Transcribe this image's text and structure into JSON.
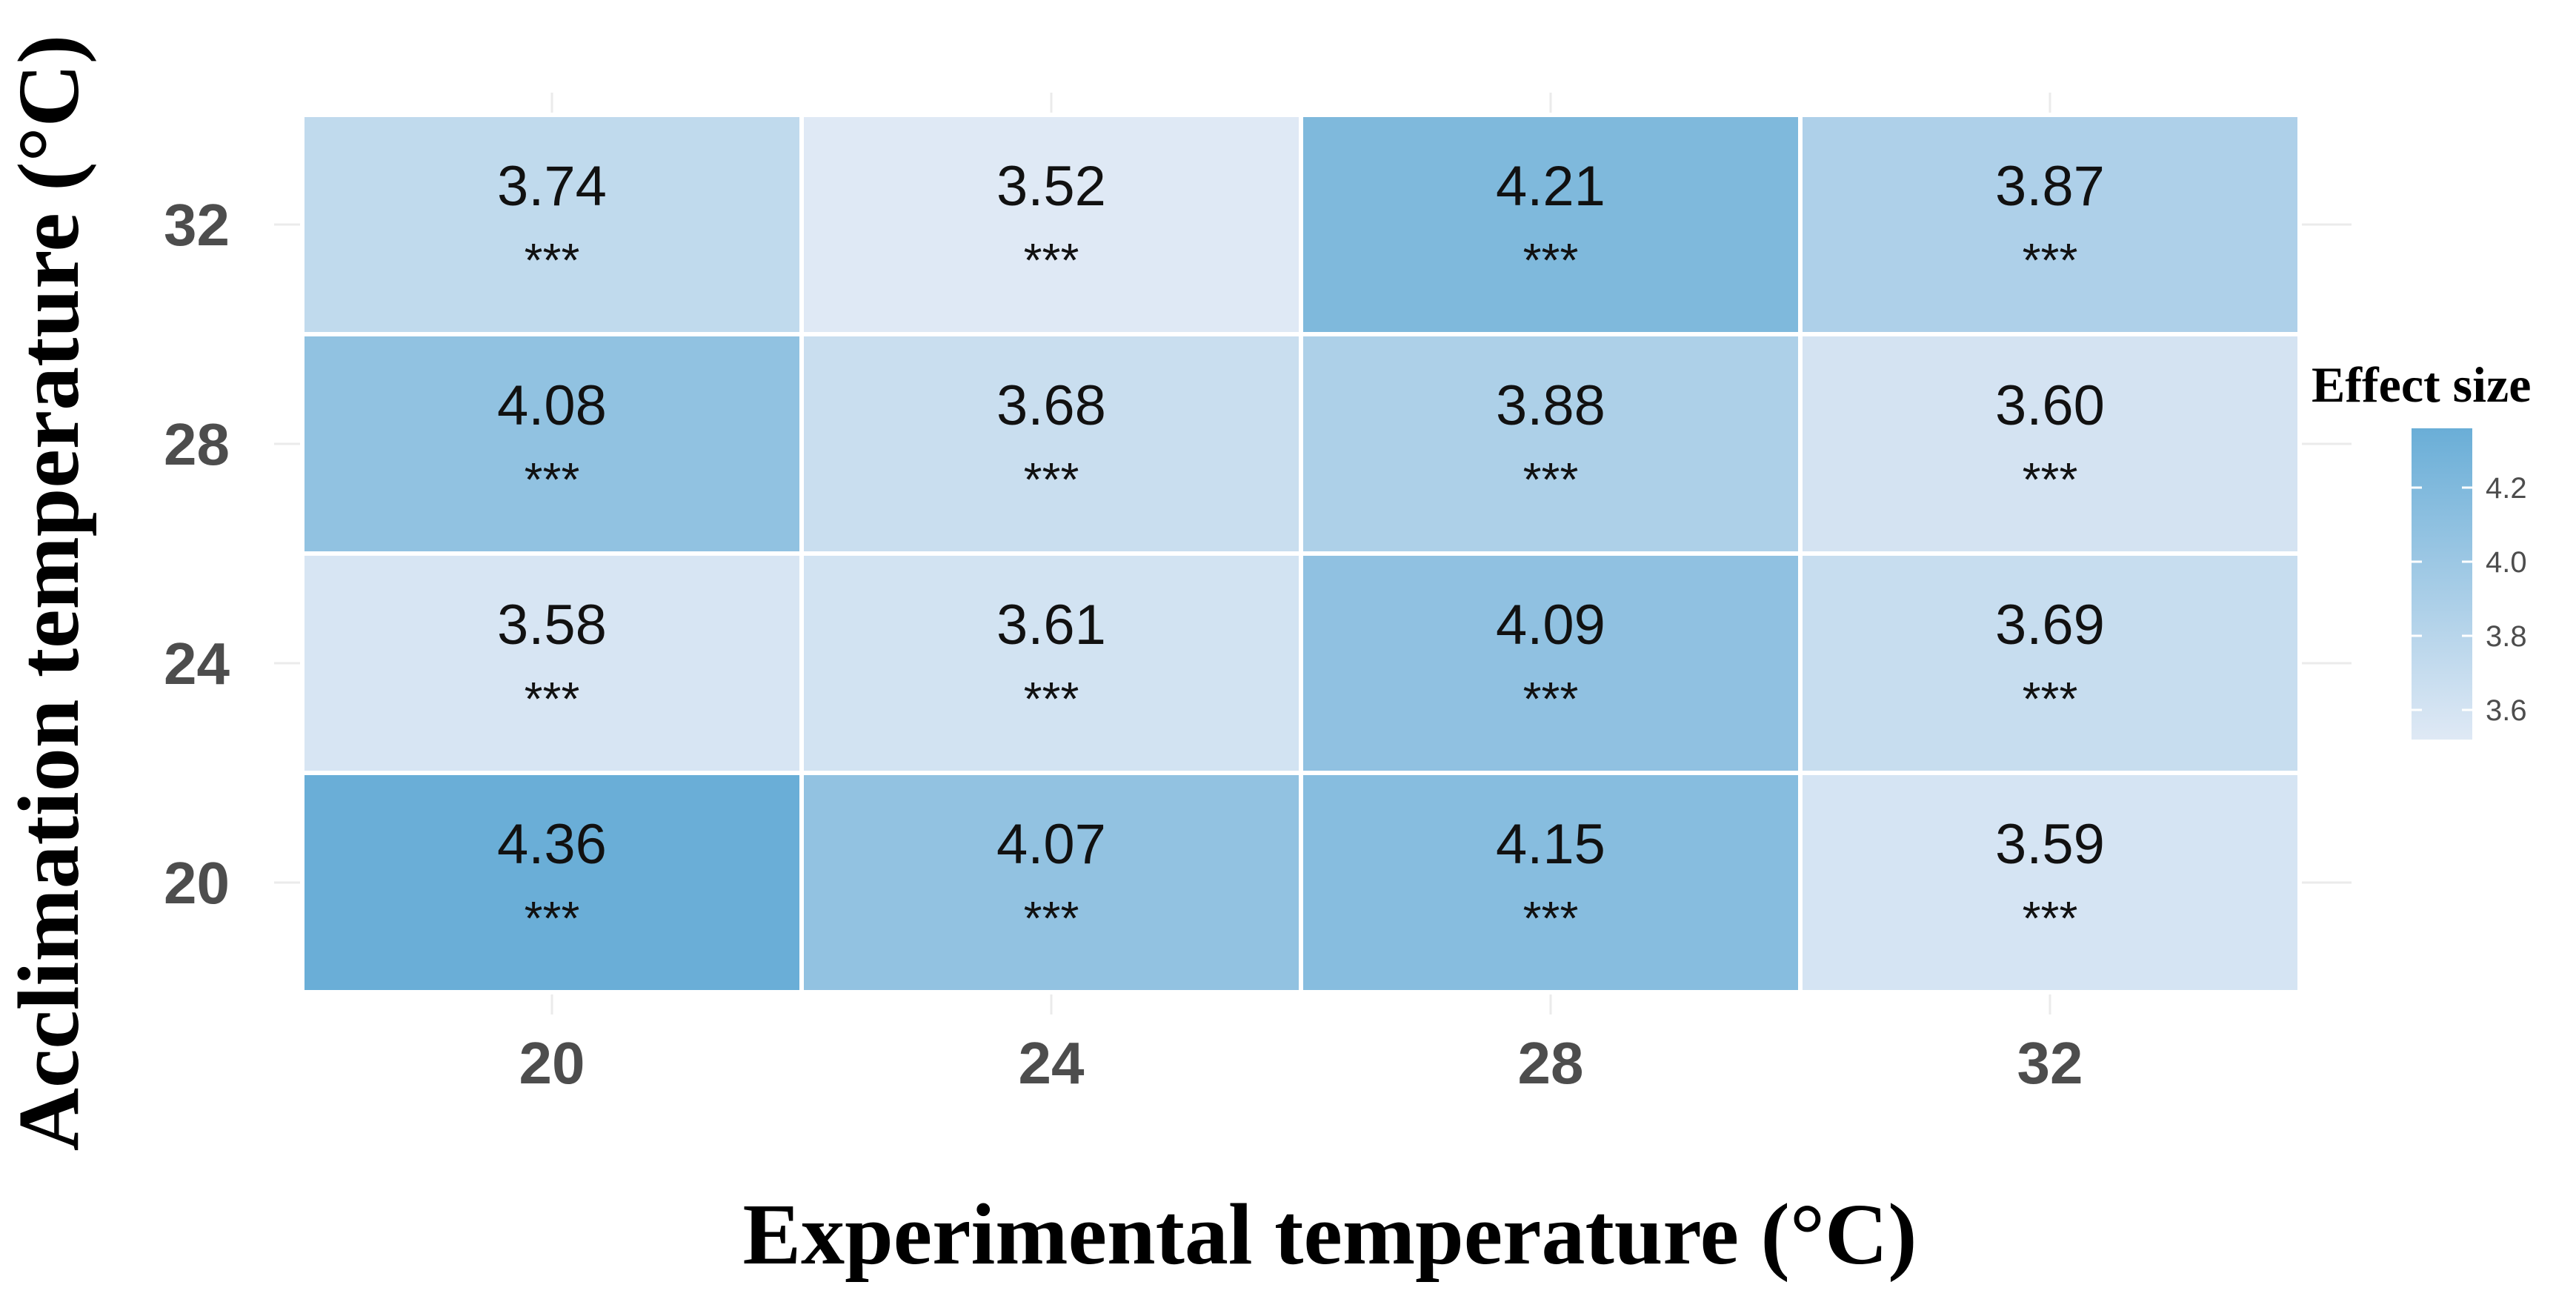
{
  "chart_data": {
    "type": "heatmap",
    "xlabel": "Experimental temperature (°C)",
    "ylabel": "Acclimation temperature (°C)",
    "x_categories": [
      "20",
      "24",
      "28",
      "32"
    ],
    "y_categories": [
      "20",
      "24",
      "28",
      "32"
    ],
    "rows": [
      {
        "y": "32",
        "values": [
          3.74,
          3.52,
          4.21,
          3.87
        ],
        "labels": [
          "3.74",
          "3.52",
          "4.21",
          "3.87"
        ],
        "significance": [
          "***",
          "***",
          "***",
          "***"
        ]
      },
      {
        "y": "28",
        "values": [
          4.08,
          3.68,
          3.88,
          3.6
        ],
        "labels": [
          "4.08",
          "3.68",
          "3.88",
          "3.60"
        ],
        "significance": [
          "***",
          "***",
          "***",
          "***"
        ]
      },
      {
        "y": "24",
        "values": [
          3.58,
          3.61,
          4.09,
          3.69
        ],
        "labels": [
          "3.58",
          "3.61",
          "4.09",
          "3.69"
        ],
        "significance": [
          "***",
          "***",
          "***",
          "***"
        ]
      },
      {
        "y": "20",
        "values": [
          4.36,
          4.07,
          4.15,
          3.59
        ],
        "labels": [
          "4.36",
          "4.07",
          "4.15",
          "3.59"
        ],
        "significance": [
          "***",
          "***",
          "***",
          "***"
        ]
      }
    ],
    "legend": {
      "title": "Effect size",
      "placement": "right",
      "ticks": [
        "4.2",
        "4.0",
        "3.8",
        "3.6"
      ],
      "tick_values": [
        4.2,
        4.0,
        3.8,
        3.6
      ],
      "range": [
        3.52,
        4.36
      ]
    },
    "color_low": "#dfe9f5",
    "color_high": "#6aaed7",
    "grid": true
  }
}
